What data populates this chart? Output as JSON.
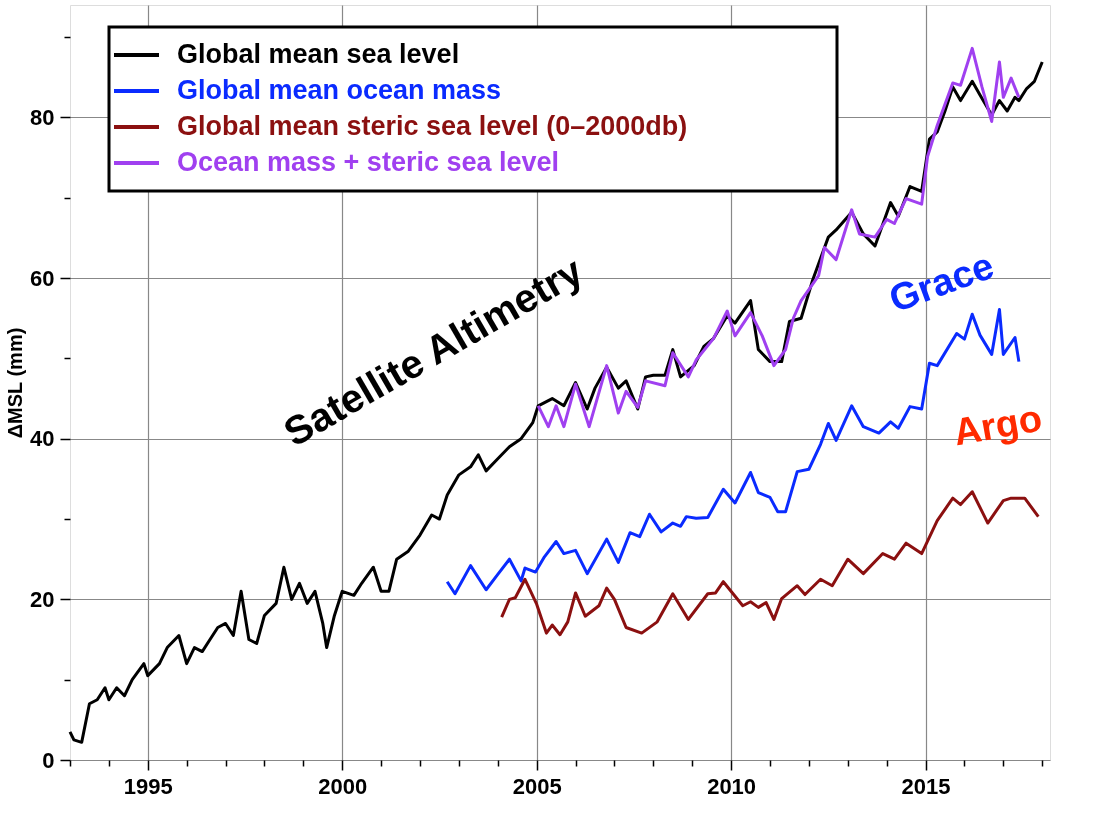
{
  "chart_data": {
    "type": "line",
    "ylabel": "ΔMSL (mm)",
    "xlim": [
      1993,
      2018.2
    ],
    "ylim": [
      0,
      94
    ],
    "xticks": [
      {
        "value": 1993,
        "label": null
      },
      {
        "value": 1994,
        "label": null
      },
      1995,
      {
        "value": 1996,
        "label": null
      },
      {
        "value": 1997,
        "label": null
      },
      {
        "value": 1998,
        "label": null
      },
      {
        "value": 1999,
        "label": null
      },
      2000,
      {
        "value": 2001,
        "label": null
      },
      {
        "value": 2002,
        "label": null
      },
      {
        "value": 2003,
        "label": null
      },
      {
        "value": 2004,
        "label": null
      },
      2005,
      {
        "value": 2006,
        "label": null
      },
      {
        "value": 2007,
        "label": null
      },
      {
        "value": 2008,
        "label": null
      },
      {
        "value": 2009,
        "label": null
      },
      2010,
      {
        "value": 2011,
        "label": null
      },
      {
        "value": 2012,
        "label": null
      },
      {
        "value": 2013,
        "label": null
      },
      {
        "value": 2014,
        "label": null
      },
      2015,
      {
        "value": 2016,
        "label": null
      },
      {
        "value": 2017,
        "label": null
      },
      {
        "value": 2018,
        "label": null
      }
    ],
    "yticks": [
      0,
      {
        "value": 10,
        "label": null
      },
      20,
      {
        "value": 30,
        "label": null
      },
      40,
      {
        "value": 50,
        "label": null
      },
      60,
      {
        "value": 70,
        "label": null
      },
      80,
      {
        "value": 90,
        "label": null
      }
    ],
    "grid": true,
    "legend": "top left",
    "marker": "none",
    "line_style": "solid",
    "series": [
      {
        "name": "Global mean sea level",
        "color": "#000000",
        "x": [
          1993.0,
          1993.1,
          1993.3,
          1993.5,
          1993.7,
          1993.9,
          1994.0,
          1994.2,
          1994.4,
          1994.6,
          1994.9,
          1995.0,
          1995.3,
          1995.5,
          1995.8,
          1996.0,
          1996.2,
          1996.4,
          1996.6,
          1996.8,
          1997.0,
          1997.2,
          1997.4,
          1997.6,
          1997.8,
          1998.0,
          1998.3,
          1998.5,
          1998.7,
          1998.9,
          1999.1,
          1999.3,
          1999.5,
          1999.6,
          1999.8,
          2000.0,
          2000.3,
          2000.5,
          2000.8,
          2001.0,
          2001.2,
          2001.4,
          2001.7,
          2002.0,
          2002.3,
          2002.5,
          2002.7,
          2003.0,
          2003.3,
          2003.5,
          2003.7,
          2004.0,
          2004.3,
          2004.6,
          2004.9,
          2005.04,
          2005.4,
          2005.7,
          2006.0,
          2006.3,
          2006.5,
          2006.8,
          2007.1,
          2007.3,
          2007.6,
          2007.8,
          2008.0,
          2008.3,
          2008.5,
          2008.7,
          2009.05,
          2009.3,
          2009.55,
          2009.9,
          2010.1,
          2010.5,
          2010.7,
          2011.0,
          2011.3,
          2011.5,
          2011.8,
          2012.1,
          2012.5,
          2012.7,
          2013.1,
          2013.4,
          2013.7,
          2014.1,
          2014.3,
          2014.6,
          2014.9,
          2015.1,
          2015.3,
          2015.5,
          2015.7,
          2015.9,
          2016.2,
          2016.4,
          2016.7,
          2016.9,
          2017.1,
          2017.3,
          2017.4,
          2017.6,
          2017.8,
          2018.0
        ],
        "values": [
          3.5,
          2.5,
          2.2,
          7,
          7.5,
          9,
          7.5,
          9,
          8,
          10,
          12,
          10.5,
          12,
          14,
          15.5,
          12,
          14,
          13.5,
          15,
          16.5,
          17,
          15.5,
          21,
          15,
          14.5,
          18,
          19.5,
          24,
          20,
          22,
          19.5,
          21,
          17,
          14,
          18,
          21,
          20.5,
          22,
          24,
          21,
          21,
          25,
          26,
          28,
          30.5,
          30,
          33,
          35.5,
          36.5,
          38,
          36,
          37.5,
          39,
          40,
          42,
          44.1,
          45.0,
          44.1,
          47.0,
          43.7,
          46.3,
          48.9,
          46.3,
          47.2,
          43.7,
          47.7,
          47.9,
          47.9,
          51.1,
          47.7,
          49.1,
          51.5,
          52.5,
          55.3,
          54.4,
          57.2,
          51.1,
          49.6,
          49.6,
          54.6,
          55.0,
          59.8,
          65.1,
          66.0,
          68.2,
          65.5,
          64.0,
          69.4,
          67.7,
          71.4,
          70.8,
          77.3,
          78.2,
          80.8,
          83.8,
          82.1,
          84.5,
          82.8,
          80.3,
          82.1,
          80.8,
          82.5,
          82.1,
          83.6,
          84.5,
          86.9
        ]
      },
      {
        "name": "Global mean ocean mass",
        "color": "#0a2bff",
        "x": [
          2002.7,
          2002.9,
          2003.3,
          2003.7,
          2004.0,
          2004.3,
          2004.6,
          2004.7,
          2004.97,
          2005.2,
          2005.5,
          2005.7,
          2006.0,
          2006.3,
          2006.8,
          2007.1,
          2007.4,
          2007.65,
          2007.9,
          2008.2,
          2008.5,
          2008.7,
          2008.85,
          2009.1,
          2009.4,
          2009.8,
          2010.1,
          2010.5,
          2010.7,
          2011.0,
          2011.2,
          2011.4,
          2011.7,
          2012.0,
          2012.3,
          2012.5,
          2012.7,
          2013.1,
          2013.4,
          2013.8,
          2014.1,
          2014.3,
          2014.6,
          2014.9,
          2015.1,
          2015.3,
          2015.8,
          2016.0,
          2016.2,
          2016.4,
          2016.7,
          2016.9,
          2017.0,
          2017.3,
          2017.4
        ],
        "values": [
          22.2,
          20.7,
          24.2,
          21.2,
          23.1,
          25.0,
          22.3,
          23.9,
          23.4,
          25.3,
          27.2,
          25.7,
          26.1,
          23.2,
          27.5,
          24.6,
          28.3,
          27.8,
          30.6,
          28.4,
          29.5,
          29.1,
          30.3,
          30.1,
          30.2,
          33.7,
          32.0,
          35.8,
          33.3,
          32.7,
          30.9,
          30.9,
          35.9,
          36.2,
          39.3,
          41.9,
          39.8,
          44.1,
          41.5,
          40.7,
          42.1,
          41.3,
          44.0,
          43.7,
          49.4,
          49.1,
          53.1,
          52.4,
          55.5,
          52.9,
          50.5,
          56.1,
          50.5,
          52.6,
          49.6
        ]
      },
      {
        "name": "Global mean steric sea level (0–2000db)",
        "color": "#8b1010",
        "x": [
          2004.1,
          2004.3,
          2004.45,
          2004.7,
          2005.0,
          2005.25,
          2005.4,
          2005.6,
          2005.8,
          2006.0,
          2006.25,
          2006.6,
          2006.8,
          2007.0,
          2007.3,
          2007.7,
          2008.1,
          2008.5,
          2008.9,
          2009.4,
          2009.6,
          2009.8,
          2010.3,
          2010.5,
          2010.7,
          2010.9,
          2011.1,
          2011.3,
          2011.7,
          2011.9,
          2012.3,
          2012.6,
          2013.0,
          2013.4,
          2013.9,
          2014.2,
          2014.5,
          2014.9,
          2015.3,
          2015.7,
          2015.9,
          2016.2,
          2016.6,
          2017.0,
          2017.2,
          2017.55,
          2017.9
        ],
        "values": [
          17.8,
          20.0,
          20.2,
          22.5,
          19.4,
          15.8,
          16.8,
          15.6,
          17.2,
          20.8,
          17.9,
          19.2,
          21.4,
          20.0,
          16.5,
          15.8,
          17.2,
          20.7,
          17.5,
          20.7,
          20.8,
          22.2,
          19.2,
          19.7,
          19.0,
          19.6,
          17.5,
          20.1,
          21.7,
          20.6,
          22.5,
          21.7,
          25.0,
          23.2,
          25.7,
          25.0,
          27.0,
          25.7,
          29.8,
          32.6,
          31.8,
          33.4,
          29.5,
          32.3,
          32.6,
          32.6,
          30.3
        ]
      },
      {
        "name": "Ocean mass + steric sea level",
        "color": "#a040f0",
        "x": [
          2005.04,
          2005.3,
          2005.5,
          2005.7,
          2006.0,
          2006.35,
          2006.8,
          2007.1,
          2007.3,
          2007.6,
          2007.8,
          2008.3,
          2008.5,
          2008.9,
          2009.1,
          2009.55,
          2009.9,
          2010.1,
          2010.5,
          2010.8,
          2011.1,
          2011.4,
          2011.6,
          2011.8,
          2012.25,
          2012.4,
          2012.7,
          2013.1,
          2013.3,
          2013.7,
          2014.0,
          2014.2,
          2014.5,
          2014.9,
          2015.05,
          2015.3,
          2015.7,
          2015.9,
          2016.2,
          2016.45,
          2016.7,
          2016.9,
          2017.0,
          2017.2,
          2017.4
        ],
        "values": [
          44.1,
          41.5,
          44.1,
          41.5,
          46.8,
          41.5,
          49.1,
          43.2,
          45.9,
          43.9,
          47.2,
          46.6,
          50.7,
          47.7,
          49.8,
          52.5,
          55.9,
          52.8,
          55.7,
          52.8,
          49.1,
          51.1,
          55.0,
          57.2,
          60.3,
          63.8,
          62.3,
          68.5,
          65.5,
          65.1,
          67.3,
          66.8,
          69.9,
          69.2,
          75.1,
          79.0,
          84.3,
          84.0,
          88.6,
          83.8,
          79.5,
          86.9,
          82.5,
          84.9,
          82.5
        ]
      }
    ],
    "annotations": [
      "Satellite Altimetry",
      "Grace",
      "Argo"
    ]
  }
}
